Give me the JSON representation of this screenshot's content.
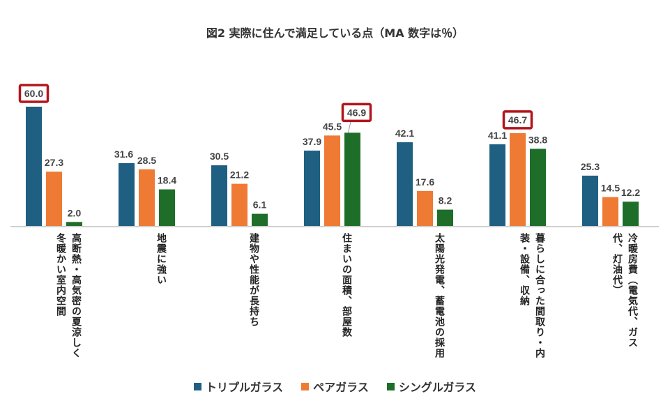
{
  "title": "図2 実際に住んで満足している点（MA 数字は％）",
  "chart_data": {
    "type": "bar",
    "title": "図2 実際に住んで満足している点（MA 数字は％）",
    "categories": [
      "高断熱・高気密の夏涼しく\n冬暖かい室内空間",
      "地震に強い",
      "建物や性能が長持ち",
      "住まいの面積、部屋数",
      "太陽光発電、蓄電池の採用",
      "暮らしに合った間取り・内\n装・設備、収納",
      "冷暖房費（電気代、ガス\n代、灯油代）"
    ],
    "series": [
      {
        "name": "トリプルガラス",
        "color": "#1f5f82",
        "values": [
          60.0,
          31.6,
          30.5,
          37.9,
          42.1,
          41.1,
          25.3
        ]
      },
      {
        "name": "ペアガラス",
        "color": "#ef7a34",
        "values": [
          27.3,
          28.5,
          21.2,
          45.5,
          17.6,
          46.7,
          14.5
        ]
      },
      {
        "name": "シングルガラス",
        "color": "#1e6e2a",
        "values": [
          2.0,
          18.4,
          6.1,
          46.9,
          8.2,
          38.8,
          12.2
        ]
      }
    ],
    "highlighted": [
      [
        0,
        0
      ],
      [
        3,
        2
      ],
      [
        5,
        1
      ]
    ],
    "highlight_color": "#b3151d",
    "ylim": [
      0,
      60
    ],
    "grid": false,
    "legend": "bottom"
  }
}
